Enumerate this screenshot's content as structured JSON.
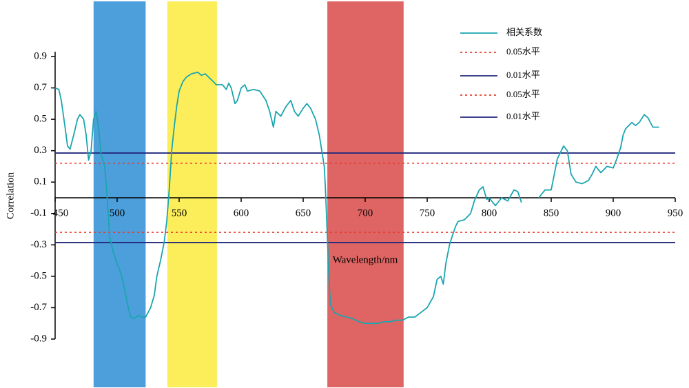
{
  "chart_data": {
    "type": "line",
    "xlabel": "Wavelength/nm",
    "ylabel": "Correlation",
    "xlim": [
      450,
      950
    ],
    "xticks": [
      450,
      500,
      550,
      600,
      650,
      700,
      750,
      800,
      850,
      900,
      950
    ],
    "ylim": [
      -0.9,
      0.9
    ],
    "yticks": [
      0.9,
      0.7,
      0.5,
      0.3,
      0.1,
      -0.1,
      -0.3,
      -0.5,
      -0.7,
      -0.9
    ],
    "bands": [
      {
        "xlim": [
          481,
          523
        ],
        "color": "#4d9fdb"
      },
      {
        "xlim": [
          540.5,
          580.5
        ],
        "color": "#fbee5a"
      },
      {
        "xlim": [
          669.5,
          731
        ],
        "color": "#de6563"
      }
    ],
    "x": [
      450,
      453,
      455,
      458,
      460,
      462,
      465,
      468,
      470,
      473,
      475,
      477,
      479,
      481,
      483,
      485,
      487,
      490,
      492,
      494,
      497,
      500,
      503,
      506,
      509,
      511,
      514,
      517,
      520,
      523,
      527,
      530,
      532,
      535,
      538,
      540,
      542,
      544,
      546,
      548,
      550,
      553,
      556,
      560,
      565,
      568,
      571,
      575,
      580,
      585,
      588,
      590,
      592,
      595,
      597,
      600,
      603,
      605,
      610,
      615,
      620,
      623,
      626,
      628,
      632,
      636,
      640,
      643,
      646,
      650,
      653,
      656,
      660,
      663,
      665,
      667,
      668,
      669,
      670,
      671,
      672,
      675,
      680,
      690,
      695,
      700,
      710,
      715,
      720,
      725,
      730,
      735,
      740,
      745,
      750,
      755,
      758,
      761,
      763,
      765,
      768,
      770,
      773,
      775,
      780,
      785,
      788,
      792,
      795,
      798,
      800,
      805,
      810,
      815,
      820,
      823,
      826,
      829,
      840,
      845,
      850,
      855,
      860,
      863,
      866,
      870,
      875,
      880,
      883,
      886,
      890,
      895,
      900,
      903,
      906,
      908,
      910,
      915,
      918,
      921,
      925,
      928,
      932,
      937
    ],
    "series": [
      {
        "name": "相关系数",
        "color": "#1aa5b0",
        "values": [
          0.7,
          0.69,
          0.62,
          0.45,
          0.33,
          0.31,
          0.4,
          0.5,
          0.53,
          0.5,
          0.4,
          0.24,
          0.3,
          0.5,
          0.55,
          0.45,
          0.28,
          0.2,
          0.0,
          -0.25,
          -0.35,
          -0.42,
          -0.48,
          -0.58,
          -0.7,
          -0.76,
          -0.77,
          -0.75,
          -0.76,
          -0.76,
          -0.7,
          -0.62,
          -0.5,
          -0.4,
          -0.28,
          -0.15,
          0.05,
          0.3,
          0.45,
          0.58,
          0.68,
          0.74,
          0.77,
          0.79,
          0.8,
          0.78,
          0.79,
          0.76,
          0.72,
          0.72,
          0.69,
          0.73,
          0.7,
          0.6,
          0.62,
          0.7,
          0.72,
          0.68,
          0.69,
          0.68,
          0.62,
          0.55,
          0.45,
          0.55,
          0.52,
          0.58,
          0.62,
          0.55,
          0.52,
          0.57,
          0.6,
          0.57,
          0.5,
          0.4,
          0.3,
          0.2,
          0.05,
          -0.15,
          -0.35,
          -0.55,
          -0.68,
          -0.73,
          -0.75,
          -0.77,
          -0.79,
          -0.8,
          -0.8,
          -0.79,
          -0.79,
          -0.78,
          -0.78,
          -0.76,
          -0.76,
          -0.73,
          -0.7,
          -0.63,
          -0.52,
          -0.5,
          -0.55,
          -0.42,
          -0.3,
          -0.25,
          -0.18,
          -0.15,
          -0.14,
          -0.1,
          -0.02,
          0.05,
          0.07,
          -0.01,
          0.0,
          -0.05,
          0.0,
          -0.02,
          0.05,
          0.04,
          -0.03,
          null,
          0.0,
          0.05,
          0.05,
          0.25,
          0.33,
          0.3,
          0.15,
          0.1,
          0.09,
          0.11,
          0.15,
          0.2,
          0.16,
          0.2,
          0.19,
          0.25,
          0.32,
          0.4,
          0.44,
          0.48,
          0.46,
          0.48,
          0.53,
          0.51,
          0.45,
          0.45
        ]
      }
    ],
    "reference_lines": [
      {
        "name": "0.05水平",
        "value": 0.22,
        "color": "#e8392a",
        "dashed": true
      },
      {
        "name": "0.01水平",
        "value": 0.285,
        "color": "#232a7c",
        "dashed": false
      },
      {
        "name": "0.05水平",
        "value": -0.22,
        "color": "#e8392a",
        "dashed": true
      },
      {
        "name": "0.01水平",
        "value": -0.285,
        "color": "#232a7c",
        "dashed": false
      }
    ]
  }
}
